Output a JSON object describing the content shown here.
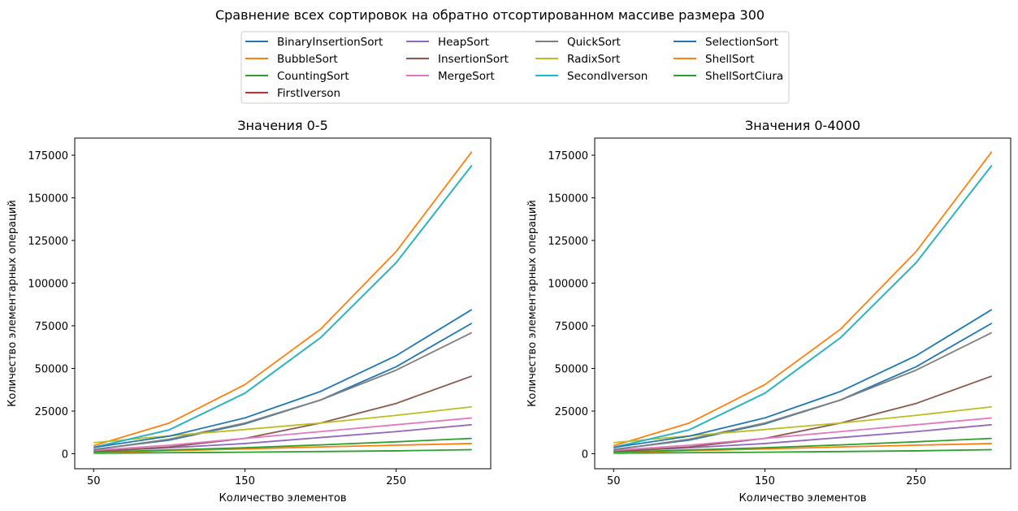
{
  "suptitle": "Сравнение всех сортировок на обратно отсортированном массиве размера 300",
  "legend": {
    "placement": "top-center",
    "entries": [
      {
        "name": "BinaryInsertionSort",
        "color": "#1f77b4"
      },
      {
        "name": "BubbleSort",
        "color": "#ff7f0e"
      },
      {
        "name": "CountingSort",
        "color": "#2ca02c"
      },
      {
        "name": "FirstIverson",
        "color": "#d62728"
      },
      {
        "name": "HeapSort",
        "color": "#9467bd"
      },
      {
        "name": "InsertionSort",
        "color": "#8c564b"
      },
      {
        "name": "MergeSort",
        "color": "#e377c2"
      },
      {
        "name": "QuickSort",
        "color": "#7f7f7f"
      },
      {
        "name": "RadixSort",
        "color": "#bcbd22"
      },
      {
        "name": "SecondIverson",
        "color": "#17becf"
      },
      {
        "name": "SelectionSort",
        "color": "#1f77b4"
      },
      {
        "name": "ShellSort",
        "color": "#ff7f0e"
      },
      {
        "name": "ShellSortCiura",
        "color": "#2ca02c"
      }
    ]
  },
  "chart_data": [
    {
      "type": "line",
      "title": "Значения 0-5",
      "xlabel": "Количество элементов",
      "ylabel": "Количество элементарных операций",
      "xlim": [
        37.5,
        312.5
      ],
      "ylim": [
        -8800,
        185000
      ],
      "xticks": [
        50,
        150,
        250
      ],
      "yticks": [
        0,
        25000,
        50000,
        75000,
        100000,
        125000,
        150000,
        175000
      ],
      "grid": false,
      "x": [
        50,
        100,
        150,
        200,
        250,
        300
      ],
      "series": [
        {
          "name": "BinaryInsertionSort",
          "color": "#1f77b4",
          "values": [
            2500,
            8000,
            17500,
            31500,
            51000,
            76500
          ]
        },
        {
          "name": "BubbleSort",
          "color": "#ff7f0e",
          "values": [
            4700,
            18000,
            40500,
            73000,
            118500,
            177000
          ]
        },
        {
          "name": "CountingSort",
          "color": "#2ca02c",
          "values": [
            300,
            600,
            900,
            1300,
            1700,
            2400
          ]
        },
        {
          "name": "FirstIverson",
          "color": "#d62728",
          "values": [
            3700,
            14000,
            35500,
            68000,
            112000,
            169000
          ]
        },
        {
          "name": "HeapSort",
          "color": "#9467bd",
          "values": [
            1500,
            3500,
            6000,
            9500,
            13000,
            17000
          ]
        },
        {
          "name": "InsertionSort",
          "color": "#8c564b",
          "values": [
            1200,
            4000,
            9000,
            18000,
            29500,
            45500
          ]
        },
        {
          "name": "MergeSort",
          "color": "#e377c2",
          "values": [
            2000,
            5000,
            9000,
            13000,
            17000,
            21000
          ]
        },
        {
          "name": "QuickSort",
          "color": "#7f7f7f",
          "values": [
            2300,
            8500,
            18000,
            31500,
            49000,
            71000
          ]
        },
        {
          "name": "RadixSort",
          "color": "#bcbd22",
          "values": [
            6500,
            10500,
            14200,
            18000,
            22500,
            27500
          ]
        },
        {
          "name": "SecondIverson",
          "color": "#17becf",
          "values": [
            3700,
            14000,
            35500,
            68000,
            112000,
            169000
          ]
        },
        {
          "name": "SelectionSort",
          "color": "#1f77b4",
          "values": [
            3700,
            10300,
            21000,
            36500,
            57500,
            84500
          ]
        },
        {
          "name": "ShellSort",
          "color": "#ff7f0e",
          "values": [
            600,
            1800,
            2800,
            4000,
            5000,
            6000
          ]
        },
        {
          "name": "ShellSortCiura",
          "color": "#2ca02c",
          "values": [
            900,
            2200,
            3500,
            5200,
            7000,
            9000
          ]
        }
      ]
    },
    {
      "type": "line",
      "title": "Значения 0-4000",
      "xlabel": "Количество элементов",
      "ylabel": "Количество элементарных операций",
      "xlim": [
        37.5,
        312.5
      ],
      "ylim": [
        -8800,
        185000
      ],
      "xticks": [
        50,
        150,
        250
      ],
      "yticks": [
        0,
        25000,
        50000,
        75000,
        100000,
        125000,
        150000,
        175000
      ],
      "grid": false,
      "x": [
        50,
        100,
        150,
        200,
        250,
        300
      ],
      "series": [
        {
          "name": "BinaryInsertionSort",
          "color": "#1f77b4",
          "values": [
            2500,
            8000,
            17500,
            31500,
            51000,
            76500
          ]
        },
        {
          "name": "BubbleSort",
          "color": "#ff7f0e",
          "values": [
            4700,
            18000,
            40500,
            73000,
            118500,
            177000
          ]
        },
        {
          "name": "CountingSort",
          "color": "#2ca02c",
          "values": [
            300,
            600,
            900,
            1300,
            1700,
            2400
          ]
        },
        {
          "name": "FirstIverson",
          "color": "#d62728",
          "values": [
            3700,
            14000,
            35500,
            68000,
            112000,
            169000
          ]
        },
        {
          "name": "HeapSort",
          "color": "#9467bd",
          "values": [
            1500,
            3500,
            6000,
            9500,
            13000,
            17000
          ]
        },
        {
          "name": "InsertionSort",
          "color": "#8c564b",
          "values": [
            1200,
            4000,
            9000,
            18000,
            29500,
            45500
          ]
        },
        {
          "name": "MergeSort",
          "color": "#e377c2",
          "values": [
            2000,
            5000,
            9000,
            13000,
            17000,
            21000
          ]
        },
        {
          "name": "QuickSort",
          "color": "#7f7f7f",
          "values": [
            2300,
            8500,
            18000,
            31500,
            49000,
            71000
          ]
        },
        {
          "name": "RadixSort",
          "color": "#bcbd22",
          "values": [
            6500,
            10500,
            14200,
            18000,
            22500,
            27500
          ]
        },
        {
          "name": "SecondIverson",
          "color": "#17becf",
          "values": [
            3700,
            14000,
            35500,
            68000,
            112000,
            169000
          ]
        },
        {
          "name": "SelectionSort",
          "color": "#1f77b4",
          "values": [
            3700,
            10300,
            21000,
            36500,
            57500,
            84500
          ]
        },
        {
          "name": "ShellSort",
          "color": "#ff7f0e",
          "values": [
            600,
            1800,
            2800,
            4000,
            5000,
            6000
          ]
        },
        {
          "name": "ShellSortCiura",
          "color": "#2ca02c",
          "values": [
            900,
            2200,
            3500,
            5200,
            7000,
            9000
          ]
        }
      ]
    }
  ]
}
